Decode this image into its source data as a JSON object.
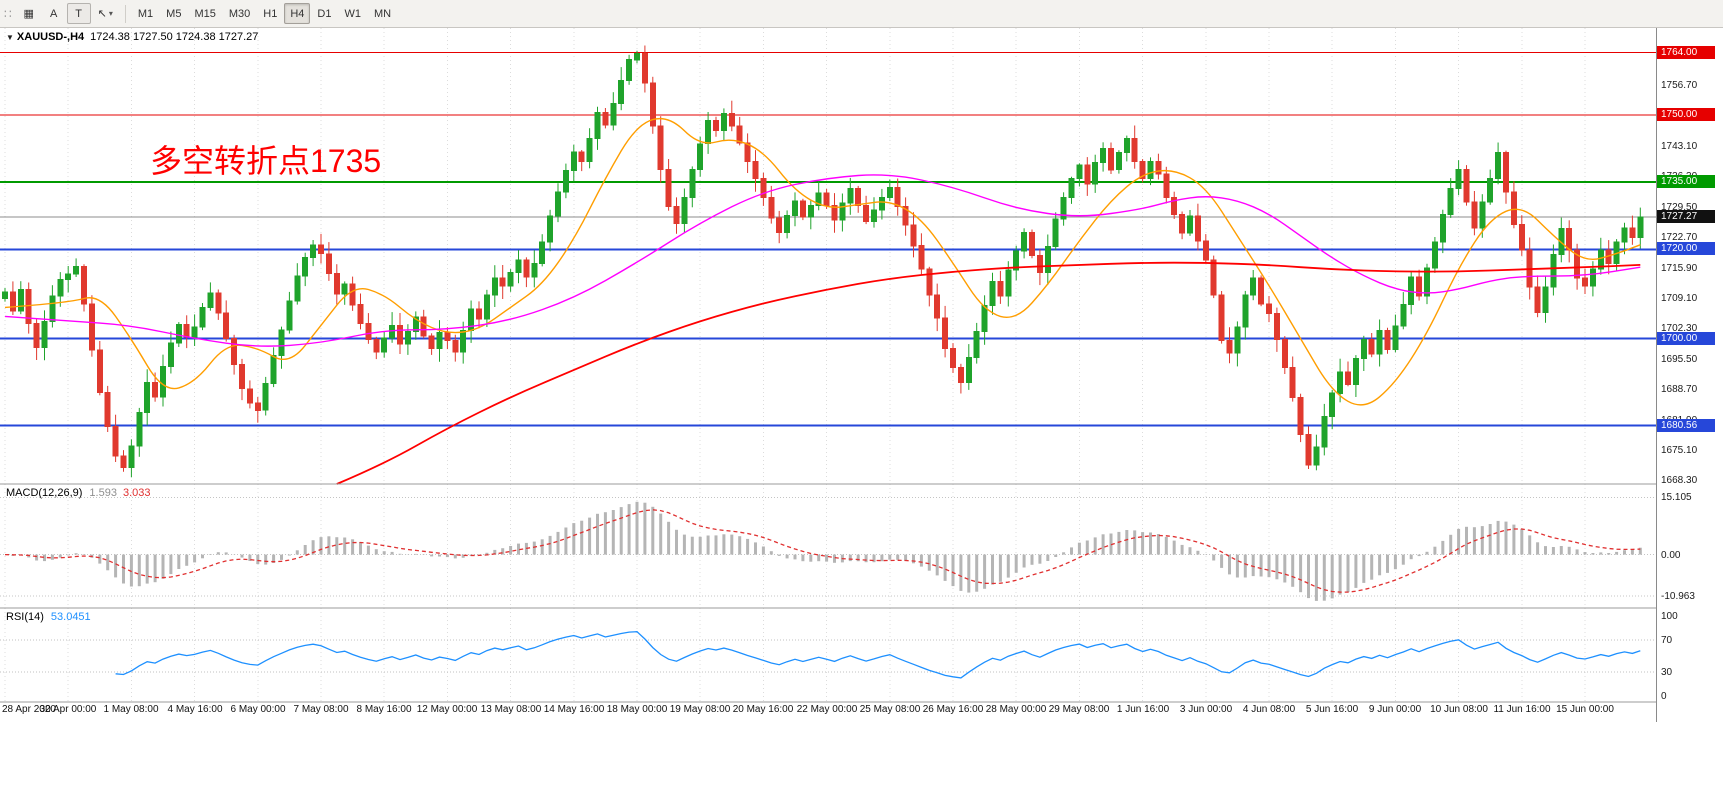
{
  "toolbar": {
    "icons": {
      "grip": "∷",
      "windows": "▦",
      "cursor": "↖",
      "caret": "▾"
    },
    "buttons": {
      "a_label": "A",
      "t_label": "T"
    },
    "timeframes": [
      "M1",
      "M5",
      "M15",
      "M30",
      "H1",
      "H4",
      "D1",
      "W1",
      "MN"
    ],
    "active_timeframe": "H4"
  },
  "chart_data": {
    "type": "candlestick",
    "title_symbol": "XAUUSD-,H4",
    "title_ohlc": "1724.38 1727.50 1724.38 1727.27",
    "collapse_glyph": "▼",
    "annotation": {
      "text": "多空转折点1735",
      "color": "#ff0000"
    },
    "colors": {
      "bull": "#1fa32b",
      "bear": "#e0392e",
      "grid": "#dcdcdc",
      "panel_border": "#9b9b9b",
      "current_line": "#8c8c8c"
    },
    "bars_per_label": 8,
    "time_labels": [
      "28 Apr 2020",
      "30 Apr 00:00",
      "1 May 08:00",
      "4 May 16:00",
      "6 May 00:00",
      "7 May 08:00",
      "8 May 16:00",
      "12 May 00:00",
      "13 May 08:00",
      "14 May 16:00",
      "18 May 00:00",
      "19 May 08:00",
      "20 May 16:00",
      "22 May 00:00",
      "25 May 08:00",
      "26 May 16:00",
      "28 May 00:00",
      "29 May 08:00",
      "1 Jun 16:00",
      "3 Jun 00:00",
      "4 Jun 08:00",
      "5 Jun 16:00",
      "9 Jun 00:00",
      "10 Jun 08:00",
      "11 Jun 16:00",
      "15 Jun 00:00"
    ],
    "price_axis": {
      "ylim": [
        1667.5,
        1769.5
      ],
      "ticks": [
        1763.5,
        1756.7,
        1749.9,
        1743.1,
        1736.3,
        1729.5,
        1722.7,
        1715.9,
        1709.1,
        1702.3,
        1695.5,
        1688.7,
        1681.9,
        1675.1,
        1668.3
      ],
      "badges": [
        {
          "value": 1764.0,
          "label": "1764.00",
          "color": "#e60000"
        },
        {
          "value": 1750.0,
          "label": "1750.00",
          "color": "#e60000"
        },
        {
          "value": 1735.0,
          "label": "1735.00",
          "color": "#009a00"
        },
        {
          "value": 1727.27,
          "label": "1727.27",
          "color": "#111111"
        },
        {
          "value": 1720.0,
          "label": "1720.00",
          "color": "#2647d9"
        },
        {
          "value": 1700.0,
          "label": "1700.00",
          "color": "#2647d9"
        },
        {
          "value": 1680.56,
          "label": "1680.56",
          "color": "#2647d9"
        }
      ]
    },
    "hlines": [
      {
        "value": 1764.0,
        "color": "#e60000",
        "width": 1
      },
      {
        "value": 1750.0,
        "color": "#e60000",
        "width": 1
      },
      {
        "value": 1735.0,
        "color": "#009a00",
        "width": 2
      },
      {
        "value": 1720.0,
        "color": "#2647d9",
        "width": 2
      },
      {
        "value": 1700.0,
        "color": "#2647d9",
        "width": 2
      },
      {
        "value": 1680.56,
        "color": "#2647d9",
        "width": 2
      }
    ],
    "current_price": 1727.27,
    "candles_close": [
      1710.5,
      1706.2,
      1711.0,
      1703.4,
      1698.0,
      1703.8,
      1709.6,
      1713.2,
      1714.5,
      1716.2,
      1707.8,
      1697.5,
      1688.0,
      1680.4,
      1673.8,
      1671.2,
      1676.0,
      1683.5,
      1690.2,
      1687.0,
      1693.8,
      1699.0,
      1703.2,
      1700.4,
      1702.6,
      1707.0,
      1710.2,
      1705.8,
      1700.0,
      1694.2,
      1688.8,
      1685.6,
      1684.0,
      1690.0,
      1696.2,
      1702.0,
      1708.4,
      1714.0,
      1718.2,
      1721.0,
      1719.0,
      1714.6,
      1710.0,
      1712.2,
      1707.6,
      1703.4,
      1699.8,
      1697.0,
      1700.2,
      1703.0,
      1698.8,
      1701.6,
      1704.8,
      1700.6,
      1697.8,
      1701.4,
      1699.6,
      1697.0,
      1701.8,
      1706.6,
      1704.4,
      1709.8,
      1713.6,
      1711.8,
      1714.8,
      1717.6,
      1713.8,
      1716.8,
      1721.6,
      1727.4,
      1732.8,
      1737.6,
      1741.8,
      1739.6,
      1744.8,
      1750.6,
      1747.8,
      1752.6,
      1757.8,
      1762.4,
      1763.8,
      1757.2,
      1747.6,
      1737.8,
      1729.6,
      1725.8,
      1731.6,
      1737.8,
      1743.6,
      1748.8,
      1746.6,
      1750.4,
      1747.6,
      1743.8,
      1739.6,
      1735.8,
      1731.6,
      1727.0,
      1723.8,
      1727.6,
      1730.8,
      1727.2,
      1729.8,
      1732.6,
      1729.8,
      1726.6,
      1730.4,
      1733.6,
      1729.8,
      1726.2,
      1728.8,
      1731.6,
      1733.8,
      1729.6,
      1725.4,
      1720.8,
      1715.6,
      1709.8,
      1704.6,
      1697.8,
      1693.6,
      1690.2,
      1695.8,
      1701.6,
      1707.4,
      1712.8,
      1709.6,
      1715.4,
      1719.6,
      1723.8,
      1718.6,
      1714.8,
      1720.6,
      1726.8,
      1731.6,
      1735.8,
      1738.8,
      1734.6,
      1739.4,
      1742.6,
      1737.8,
      1741.6,
      1744.8,
      1739.6,
      1735.8,
      1739.6,
      1736.8,
      1731.6,
      1727.8,
      1723.6,
      1727.4,
      1721.8,
      1717.6,
      1709.8,
      1699.6,
      1696.8,
      1702.6,
      1709.8,
      1713.6,
      1707.8,
      1705.6,
      1699.8,
      1693.6,
      1686.8,
      1678.6,
      1671.8,
      1675.8,
      1682.6,
      1687.8,
      1692.6,
      1689.8,
      1695.6,
      1699.8,
      1696.6,
      1701.8,
      1697.6,
      1702.8,
      1707.6,
      1713.8,
      1709.6,
      1715.8,
      1721.6,
      1727.8,
      1733.6,
      1737.8,
      1730.6,
      1724.8,
      1730.6,
      1735.8,
      1741.6,
      1732.8,
      1725.6,
      1719.8,
      1711.6,
      1705.8,
      1711.6,
      1718.8,
      1724.6,
      1719.8,
      1713.6,
      1711.8,
      1715.6,
      1719.8,
      1716.8,
      1721.6,
      1724.8,
      1722.6,
      1727.27
    ],
    "moving_averages": [
      {
        "name": "ma-fast",
        "color": "#ff9e00",
        "width": 1.4,
        "anchors": [
          [
            0,
            1707
          ],
          [
            8,
            1708
          ],
          [
            12,
            1710
          ],
          [
            16,
            1700
          ],
          [
            20,
            1688
          ],
          [
            24,
            1690
          ],
          [
            28,
            1699
          ],
          [
            32,
            1698
          ],
          [
            36,
            1694
          ],
          [
            40,
            1703
          ],
          [
            44,
            1712
          ],
          [
            48,
            1710
          ],
          [
            52,
            1704
          ],
          [
            56,
            1701
          ],
          [
            60,
            1702
          ],
          [
            64,
            1707
          ],
          [
            68,
            1712
          ],
          [
            72,
            1722
          ],
          [
            76,
            1736
          ],
          [
            80,
            1748
          ],
          [
            84,
            1750
          ],
          [
            88,
            1743
          ],
          [
            92,
            1745
          ],
          [
            96,
            1742
          ],
          [
            100,
            1733
          ],
          [
            104,
            1729
          ],
          [
            108,
            1730
          ],
          [
            112,
            1731
          ],
          [
            116,
            1727
          ],
          [
            120,
            1717
          ],
          [
            124,
            1706
          ],
          [
            128,
            1704
          ],
          [
            132,
            1712
          ],
          [
            136,
            1722
          ],
          [
            140,
            1731
          ],
          [
            144,
            1737
          ],
          [
            148,
            1738
          ],
          [
            152,
            1734
          ],
          [
            156,
            1723
          ],
          [
            160,
            1712
          ],
          [
            164,
            1700
          ],
          [
            168,
            1688
          ],
          [
            172,
            1684
          ],
          [
            176,
            1690
          ],
          [
            180,
            1701
          ],
          [
            184,
            1716
          ],
          [
            188,
            1727
          ],
          [
            192,
            1730
          ],
          [
            196,
            1723
          ],
          [
            200,
            1717
          ],
          [
            204,
            1719
          ],
          [
            207,
            1721
          ]
        ]
      },
      {
        "name": "ma-mid",
        "color": "#ff00ff",
        "width": 1.4,
        "anchors": [
          [
            0,
            1705
          ],
          [
            8,
            1704
          ],
          [
            16,
            1703
          ],
          [
            24,
            1700
          ],
          [
            32,
            1698
          ],
          [
            40,
            1699
          ],
          [
            48,
            1702
          ],
          [
            56,
            1702
          ],
          [
            64,
            1704
          ],
          [
            72,
            1709
          ],
          [
            80,
            1717
          ],
          [
            88,
            1726
          ],
          [
            96,
            1733
          ],
          [
            104,
            1736
          ],
          [
            112,
            1737
          ],
          [
            120,
            1734
          ],
          [
            128,
            1729
          ],
          [
            136,
            1727
          ],
          [
            144,
            1729
          ],
          [
            148,
            1731
          ],
          [
            152,
            1732
          ],
          [
            156,
            1731
          ],
          [
            160,
            1728
          ],
          [
            164,
            1723
          ],
          [
            168,
            1718
          ],
          [
            172,
            1714
          ],
          [
            176,
            1711
          ],
          [
            180,
            1710
          ],
          [
            184,
            1711
          ],
          [
            188,
            1713
          ],
          [
            192,
            1714
          ],
          [
            200,
            1714
          ],
          [
            207,
            1716
          ]
        ]
      },
      {
        "name": "ma-slow",
        "color": "#ff0000",
        "width": 1.8,
        "anchors": [
          [
            42,
            1667.5
          ],
          [
            48,
            1672
          ],
          [
            56,
            1680
          ],
          [
            64,
            1687
          ],
          [
            72,
            1693
          ],
          [
            80,
            1699
          ],
          [
            88,
            1704
          ],
          [
            96,
            1708
          ],
          [
            104,
            1711
          ],
          [
            112,
            1713.5
          ],
          [
            120,
            1715
          ],
          [
            128,
            1716
          ],
          [
            136,
            1716.5
          ],
          [
            144,
            1717
          ],
          [
            152,
            1717
          ],
          [
            160,
            1716.5
          ],
          [
            168,
            1715.5
          ],
          [
            176,
            1715
          ],
          [
            184,
            1715
          ],
          [
            192,
            1715.5
          ],
          [
            200,
            1716
          ],
          [
            207,
            1716.5
          ]
        ]
      }
    ],
    "macd": {
      "label": "MACD(12,26,9)",
      "value_main": "1.593",
      "value_signal": "3.033",
      "fast": 12,
      "slow": 26,
      "signal": 9,
      "ylim": [
        -12.5,
        16.5
      ],
      "axis_ticks": [
        {
          "v": 15.105,
          "label": "15.105"
        },
        {
          "v": 0,
          "label": "0.00"
        },
        {
          "v": -10.963,
          "label": "-10.963"
        }
      ],
      "hist_color": "#b5b5b5",
      "signal_color": "#e03030"
    },
    "rsi": {
      "label": "RSI(14)",
      "value": "53.0451",
      "period": 14,
      "levels": [
        70,
        30
      ],
      "axis_ticks": [
        {
          "v": 100,
          "label": "100"
        },
        {
          "v": 70,
          "label": "70"
        },
        {
          "v": 30,
          "label": "30"
        },
        {
          "v": 0,
          "label": "0"
        }
      ],
      "color": "#1e90ff"
    }
  }
}
